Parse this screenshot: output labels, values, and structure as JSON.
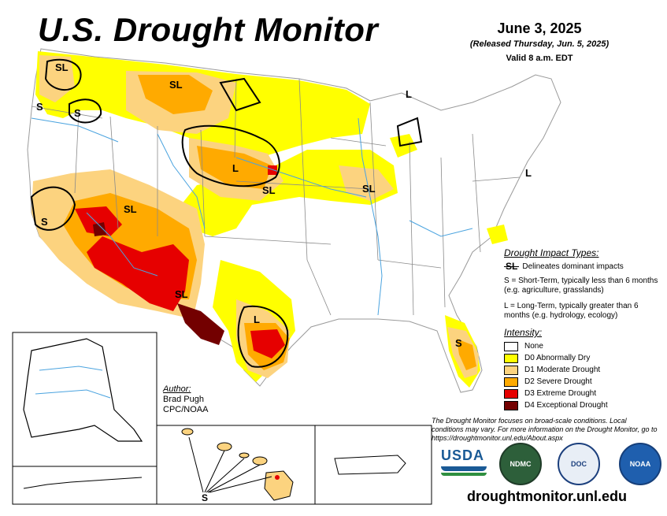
{
  "header": {
    "title": "U.S. Drought Monitor",
    "date": "June 3, 2025",
    "released": "(Released Thursday, Jun. 5, 2025)",
    "valid": "Valid 8 a.m. EDT"
  },
  "map_labels": {
    "sl_nw": "SL",
    "s_or": "S",
    "s_id": "S",
    "sl_mt": "SL",
    "l_mi": "L",
    "l_wy": "L",
    "sl_ne": "SL",
    "sl_ia": "SL",
    "s_ca": "S",
    "sl_az": "SL",
    "sl_nm": "SL",
    "l_tx": "L",
    "s_fl": "S",
    "l_ne": "L",
    "s_hi": "S"
  },
  "impact_legend": {
    "heading": "Drought Impact Types:",
    "sl_symbol": "SL",
    "sl_text": "Delineates dominant impacts",
    "s_text": "S = Short-Term, typically less than 6 months (e.g. agriculture, grasslands)",
    "l_text": "L = Long-Term, typically greater than 6 months (e.g. hydrology, ecology)"
  },
  "intensity_legend": {
    "heading": "Intensity:",
    "items": [
      {
        "label": "None",
        "color": "#ffffff"
      },
      {
        "label": "D0 Abnormally Dry",
        "color": "#ffff00"
      },
      {
        "label": "D1 Moderate Drought",
        "color": "#fcd37f"
      },
      {
        "label": "D2 Severe Drought",
        "color": "#ffaa00"
      },
      {
        "label": "D3 Extreme Drought",
        "color": "#e60000"
      },
      {
        "label": "D4 Exceptional Drought",
        "color": "#730000"
      }
    ]
  },
  "author": {
    "heading": "Author:",
    "name": "Brad Pugh",
    "org": "CPC/NOAA"
  },
  "disclaimer": "The Drought Monitor focuses on broad-scale conditions. Local conditions may vary. For more information on the Drought Monitor, go to https://droughtmonitor.unl.edu/About.aspx",
  "logos": {
    "usda": "USDA",
    "ndmc": "NDMC",
    "commerce": "DOC",
    "noaa": "NOAA"
  },
  "url": "droughtmonitor.unl.edu",
  "colors": {
    "d0": "#ffff00",
    "d1": "#fcd37f",
    "d2": "#ffaa00",
    "d3": "#e60000",
    "d4": "#730000",
    "water": "#4aa3df"
  }
}
